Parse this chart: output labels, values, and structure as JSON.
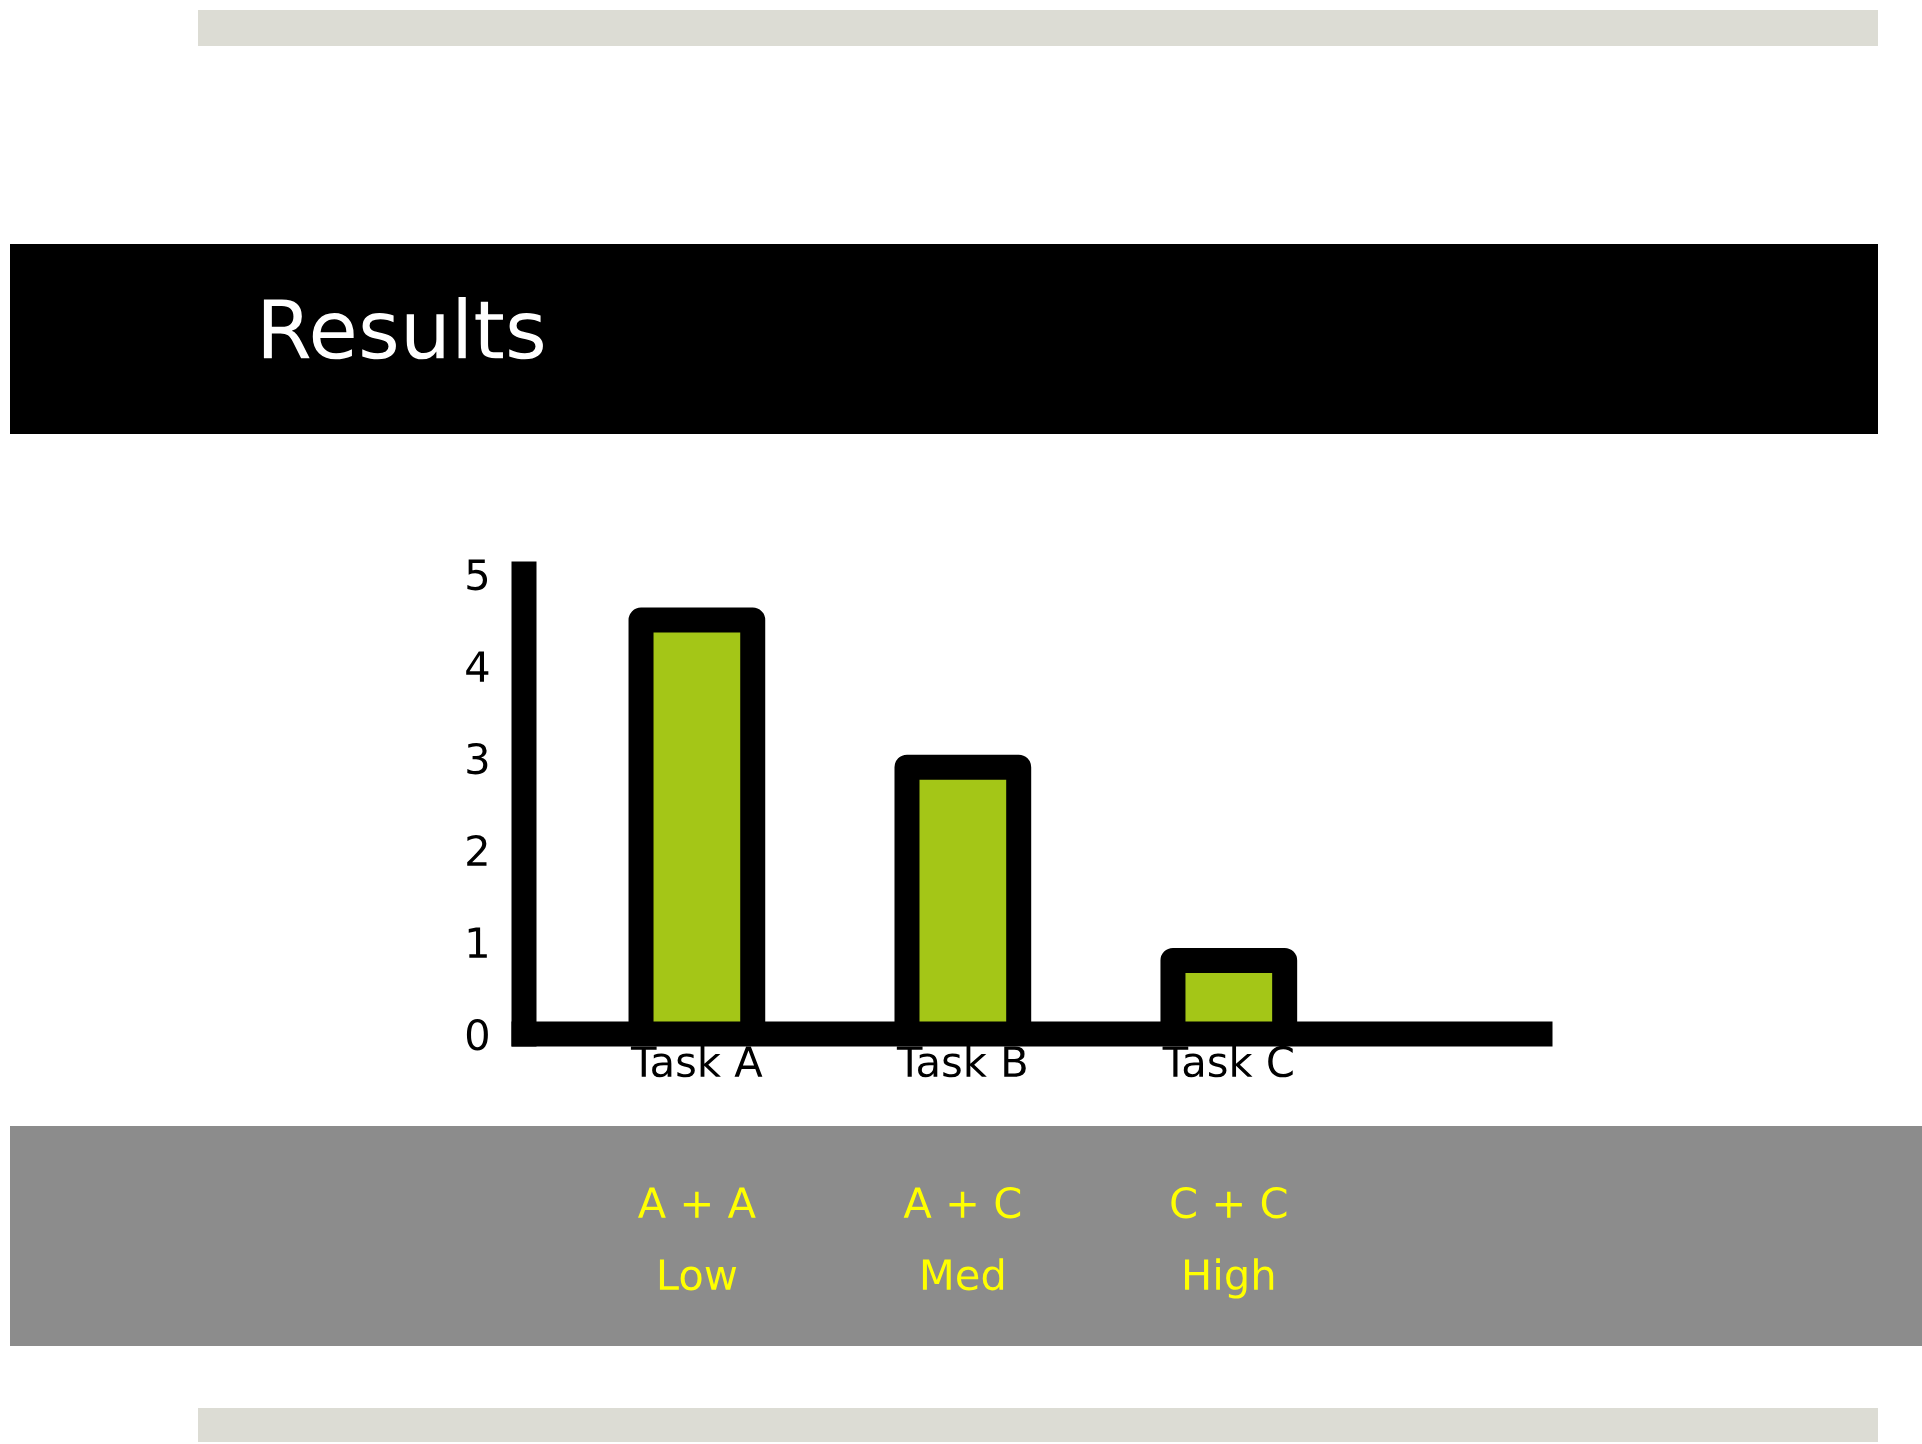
{
  "chart_data": {
    "type": "bar",
    "title": "Results",
    "categories": [
      "Task A",
      "Task B",
      "Task C"
    ],
    "values": [
      4.5,
      2.9,
      0.8
    ],
    "color": "#a4c617",
    "ylim": [
      0,
      5
    ],
    "yticks": [
      0,
      1,
      2,
      3,
      4,
      5
    ],
    "grid": false,
    "annotations": [
      "A + A\nLow",
      "A + C\nMed",
      "C + C\nHigh"
    ]
  }
}
